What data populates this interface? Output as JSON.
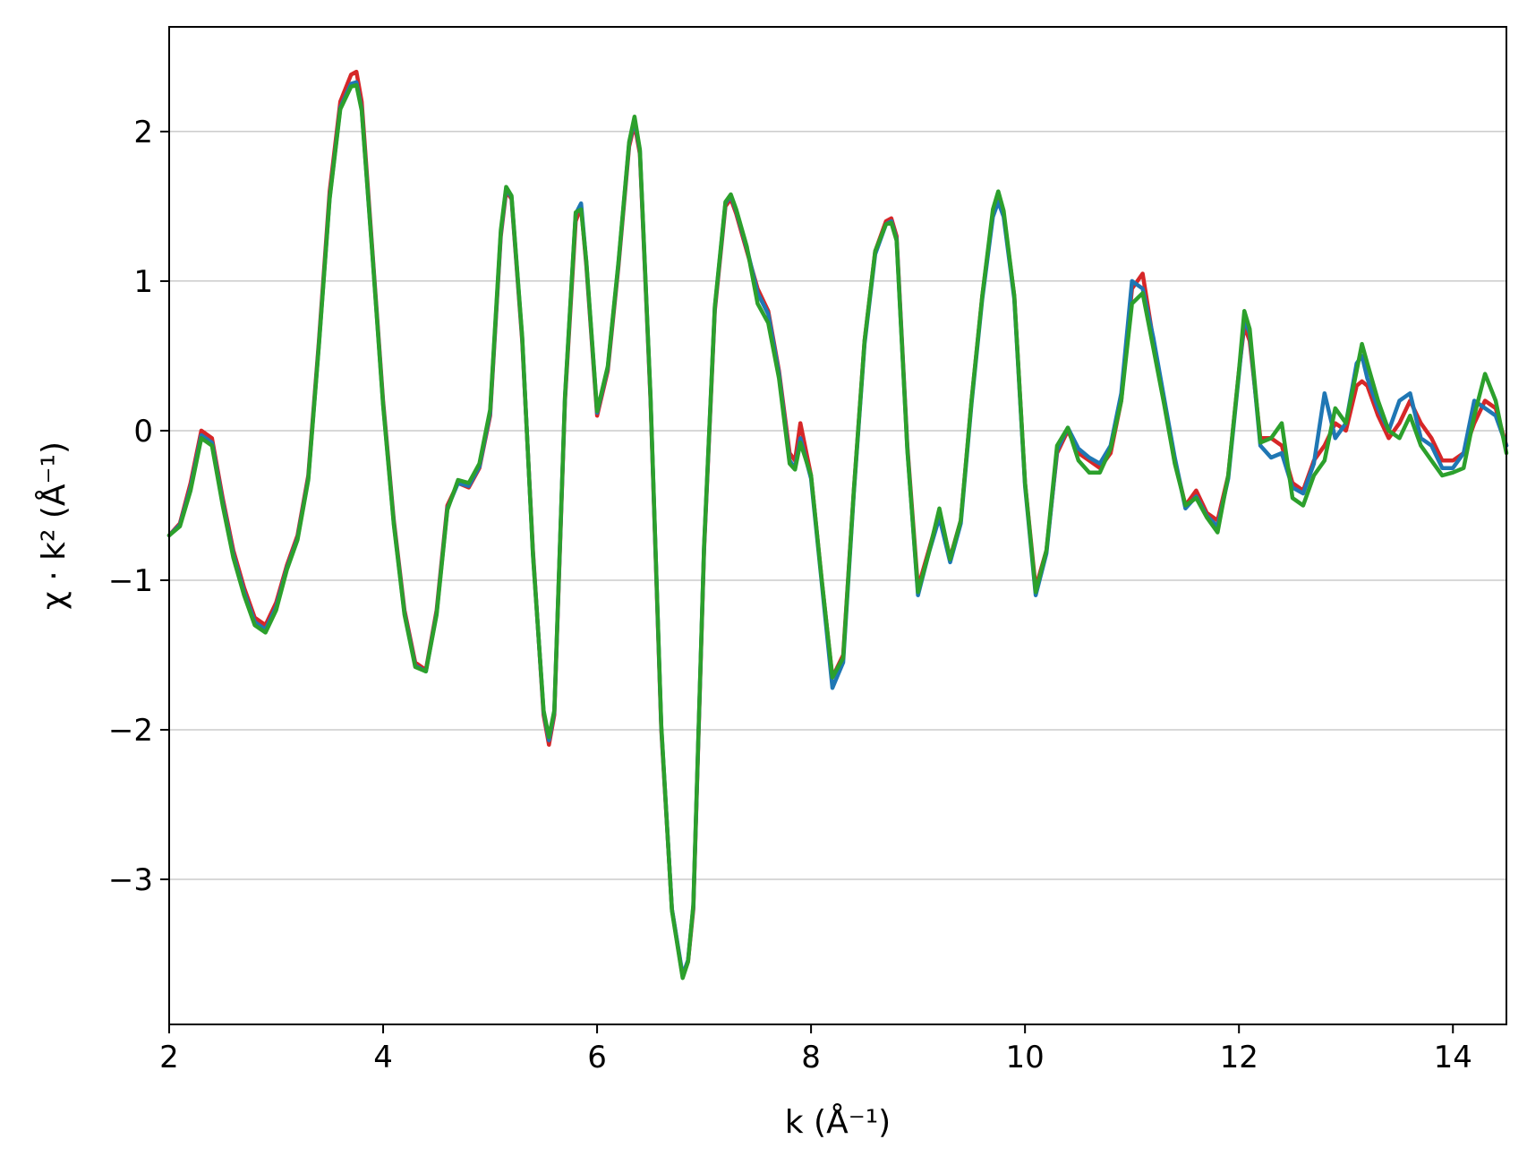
{
  "chart_data": {
    "type": "line",
    "xlabel": "k (Å⁻¹)",
    "ylabel": "χ · k² (Å⁻¹)",
    "xlim": [
      2,
      14.5
    ],
    "ylim": [
      -3.97,
      2.7
    ],
    "xticks": [
      2,
      4,
      6,
      8,
      10,
      12,
      14
    ],
    "xtick_labels": [
      "2",
      "4",
      "6",
      "8",
      "10",
      "12",
      "14"
    ],
    "yticks": [
      -3,
      -2,
      -1,
      0,
      1,
      2
    ],
    "ytick_labels": [
      "−3",
      "−2",
      "−1",
      "0",
      "1",
      "2"
    ],
    "grid": "horizontal",
    "legend": "none",
    "colors": [
      "#d62728",
      "#1f77b4",
      "#2ca02c"
    ],
    "x": [
      2.0,
      2.1,
      2.2,
      2.3,
      2.4,
      2.5,
      2.6,
      2.7,
      2.8,
      2.9,
      3.0,
      3.1,
      3.2,
      3.3,
      3.4,
      3.5,
      3.6,
      3.7,
      3.75,
      3.8,
      3.9,
      4.0,
      4.1,
      4.2,
      4.3,
      4.4,
      4.5,
      4.6,
      4.7,
      4.8,
      4.9,
      5.0,
      5.1,
      5.15,
      5.2,
      5.3,
      5.4,
      5.5,
      5.55,
      5.6,
      5.7,
      5.8,
      5.85,
      5.9,
      6.0,
      6.1,
      6.2,
      6.3,
      6.35,
      6.4,
      6.5,
      6.6,
      6.7,
      6.8,
      6.85,
      6.9,
      7.0,
      7.1,
      7.2,
      7.25,
      7.3,
      7.4,
      7.5,
      7.6,
      7.7,
      7.8,
      7.85,
      7.9,
      8.0,
      8.1,
      8.2,
      8.3,
      8.4,
      8.5,
      8.6,
      8.7,
      8.75,
      8.8,
      8.9,
      9.0,
      9.1,
      9.2,
      9.3,
      9.4,
      9.5,
      9.6,
      9.7,
      9.75,
      9.8,
      9.9,
      10.0,
      10.1,
      10.2,
      10.3,
      10.4,
      10.5,
      10.6,
      10.7,
      10.8,
      10.9,
      11.0,
      11.1,
      11.2,
      11.3,
      11.4,
      11.5,
      11.6,
      11.7,
      11.8,
      11.9,
      12.0,
      12.05,
      12.1,
      12.2,
      12.3,
      12.4,
      12.5,
      12.6,
      12.7,
      12.8,
      12.9,
      13.0,
      13.1,
      13.15,
      13.2,
      13.3,
      13.4,
      13.5,
      13.6,
      13.7,
      13.8,
      13.9,
      14.0,
      14.1,
      14.2,
      14.3,
      14.4,
      14.5
    ],
    "series": [
      {
        "values": [
          -0.7,
          -0.62,
          -0.35,
          0.0,
          -0.05,
          -0.45,
          -0.8,
          -1.05,
          -1.25,
          -1.3,
          -1.15,
          -0.9,
          -0.7,
          -0.3,
          0.6,
          1.6,
          2.2,
          2.38,
          2.4,
          2.2,
          1.2,
          0.2,
          -0.6,
          -1.2,
          -1.55,
          -1.6,
          -1.2,
          -0.5,
          -0.35,
          -0.38,
          -0.25,
          0.1,
          1.3,
          1.6,
          1.55,
          0.6,
          -0.8,
          -1.9,
          -2.1,
          -1.9,
          0.2,
          1.4,
          1.5,
          1.1,
          0.1,
          0.4,
          1.1,
          1.9,
          2.05,
          1.85,
          0.2,
          -2.0,
          -3.2,
          -3.65,
          -3.55,
          -3.2,
          -0.8,
          0.8,
          1.5,
          1.55,
          1.45,
          1.2,
          0.95,
          0.8,
          0.4,
          -0.15,
          -0.2,
          0.05,
          -0.3,
          -1.0,
          -1.65,
          -1.5,
          -0.4,
          0.6,
          1.2,
          1.4,
          1.42,
          1.3,
          -0.1,
          -1.05,
          -0.8,
          -0.55,
          -0.85,
          -0.6,
          0.2,
          0.9,
          1.45,
          1.55,
          1.45,
          0.9,
          -0.35,
          -1.05,
          -0.8,
          -0.15,
          0.0,
          -0.15,
          -0.2,
          -0.25,
          -0.15,
          0.2,
          0.95,
          1.05,
          0.6,
          0.2,
          -0.2,
          -0.5,
          -0.4,
          -0.55,
          -0.6,
          -0.3,
          0.4,
          0.7,
          0.6,
          -0.05,
          -0.05,
          -0.1,
          -0.35,
          -0.4,
          -0.2,
          -0.1,
          0.05,
          0.0,
          0.3,
          0.33,
          0.3,
          0.1,
          -0.05,
          0.05,
          0.2,
          0.05,
          -0.05,
          -0.2,
          -0.2,
          -0.15,
          0.05,
          0.2,
          0.15,
          -0.1
        ]
      },
      {
        "values": [
          -0.7,
          -0.63,
          -0.38,
          -0.03,
          -0.08,
          -0.48,
          -0.83,
          -1.08,
          -1.28,
          -1.33,
          -1.18,
          -0.92,
          -0.72,
          -0.32,
          0.58,
          1.56,
          2.16,
          2.32,
          2.33,
          2.15,
          1.18,
          0.18,
          -0.62,
          -1.22,
          -1.57,
          -1.61,
          -1.22,
          -0.52,
          -0.35,
          -0.37,
          -0.24,
          0.12,
          1.32,
          1.62,
          1.56,
          0.62,
          -0.82,
          -1.88,
          -2.07,
          -1.88,
          0.22,
          1.45,
          1.52,
          1.12,
          0.12,
          0.42,
          1.12,
          1.92,
          2.08,
          1.87,
          0.22,
          -1.98,
          -3.2,
          -3.64,
          -3.54,
          -3.18,
          -0.78,
          0.82,
          1.52,
          1.57,
          1.47,
          1.22,
          0.92,
          0.78,
          0.38,
          -0.2,
          -0.25,
          -0.05,
          -0.32,
          -1.02,
          -1.72,
          -1.55,
          -0.42,
          0.58,
          1.18,
          1.38,
          1.4,
          1.28,
          -0.12,
          -1.1,
          -0.82,
          -0.58,
          -0.88,
          -0.62,
          0.18,
          0.88,
          1.43,
          1.53,
          1.43,
          0.88,
          -0.37,
          -1.1,
          -0.82,
          -0.13,
          0.02,
          -0.12,
          -0.18,
          -0.22,
          -0.1,
          0.25,
          1.0,
          0.95,
          0.62,
          0.22,
          -0.18,
          -0.52,
          -0.44,
          -0.57,
          -0.64,
          -0.32,
          0.38,
          0.75,
          0.65,
          -0.1,
          -0.18,
          -0.15,
          -0.38,
          -0.42,
          -0.22,
          0.25,
          -0.05,
          0.05,
          0.45,
          0.5,
          0.35,
          0.15,
          0.0,
          0.2,
          0.25,
          -0.05,
          -0.1,
          -0.25,
          -0.25,
          -0.15,
          0.2,
          0.15,
          0.1,
          -0.1
        ]
      },
      {
        "values": [
          -0.7,
          -0.64,
          -0.4,
          -0.05,
          -0.1,
          -0.5,
          -0.85,
          -1.1,
          -1.3,
          -1.35,
          -1.2,
          -0.93,
          -0.73,
          -0.33,
          0.57,
          1.55,
          2.15,
          2.3,
          2.31,
          2.14,
          1.17,
          0.17,
          -0.63,
          -1.23,
          -1.58,
          -1.61,
          -1.23,
          -0.53,
          -0.33,
          -0.35,
          -0.22,
          0.14,
          1.34,
          1.63,
          1.57,
          0.63,
          -0.83,
          -1.87,
          -2.05,
          -1.87,
          0.23,
          1.46,
          1.48,
          1.13,
          0.13,
          0.43,
          1.13,
          1.93,
          2.1,
          1.88,
          0.23,
          -1.97,
          -3.21,
          -3.66,
          -3.55,
          -3.17,
          -0.77,
          0.83,
          1.53,
          1.58,
          1.48,
          1.23,
          0.85,
          0.72,
          0.35,
          -0.22,
          -0.26,
          -0.08,
          -0.3,
          -1.0,
          -1.65,
          -1.52,
          -0.4,
          0.6,
          1.2,
          1.38,
          1.39,
          1.27,
          -0.13,
          -1.08,
          -0.82,
          -0.52,
          -0.86,
          -0.6,
          0.2,
          0.9,
          1.48,
          1.6,
          1.47,
          0.9,
          -0.35,
          -1.08,
          -0.8,
          -0.1,
          0.02,
          -0.2,
          -0.28,
          -0.28,
          -0.12,
          0.2,
          0.85,
          0.92,
          0.55,
          0.18,
          -0.22,
          -0.5,
          -0.45,
          -0.58,
          -0.68,
          -0.3,
          0.4,
          0.8,
          0.68,
          -0.08,
          -0.05,
          0.05,
          -0.45,
          -0.5,
          -0.3,
          -0.2,
          0.15,
          0.05,
          0.4,
          0.58,
          0.45,
          0.2,
          0.0,
          -0.05,
          0.1,
          -0.1,
          -0.2,
          -0.3,
          -0.28,
          -0.25,
          0.1,
          0.38,
          0.2,
          -0.15
        ]
      }
    ]
  }
}
